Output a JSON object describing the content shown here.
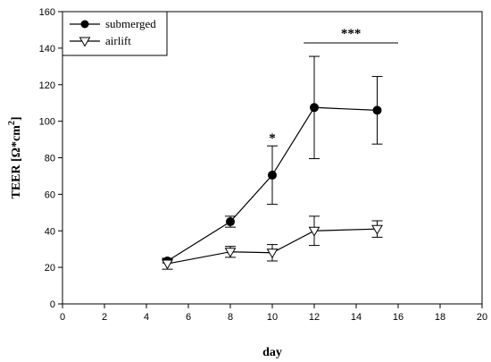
{
  "chart_data": {
    "type": "line",
    "xlabel": "day",
    "ylabel_main": "TEER [Ω*cm",
    "ylabel_sup": "2",
    "ylabel_tail": "]",
    "xlim": [
      0,
      20
    ],
    "ylim": [
      0,
      160
    ],
    "xticks": [
      0,
      2,
      4,
      6,
      8,
      10,
      12,
      14,
      16,
      18,
      20
    ],
    "yticks": [
      0,
      20,
      40,
      60,
      80,
      100,
      120,
      140,
      160
    ],
    "legend_position": "top-left",
    "series": [
      {
        "name": "submerged",
        "marker": "filled-circle",
        "x": [
          5,
          8,
          10,
          12,
          15
        ],
        "y": [
          23.5,
          45,
          70.5,
          107.5,
          106
        ],
        "err": [
          1,
          3,
          16,
          28,
          18.5
        ]
      },
      {
        "name": "airlift",
        "marker": "open-triangle-down",
        "x": [
          5,
          8,
          10,
          12,
          15
        ],
        "y": [
          22,
          28.5,
          28,
          40,
          41
        ],
        "err": [
          3,
          3,
          4.5,
          8,
          4.5
        ]
      }
    ],
    "annotations": [
      {
        "text": "*",
        "x": 10
      },
      {
        "text": "***",
        "x_start": 11.5,
        "x_end": 16
      }
    ]
  }
}
